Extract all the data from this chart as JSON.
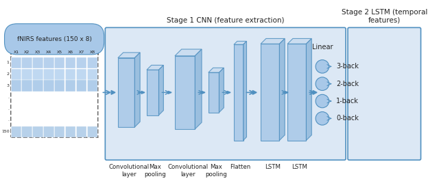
{
  "title": "Stage 1 CNN (feature extraction)",
  "title2": "Stage 2 LSTM (temporal\nfeatures)",
  "input_label": "fNIRS features (150 x 8)",
  "col_labels": [
    "X1",
    "X2",
    "X3",
    "X4",
    "X5",
    "X6",
    "X7",
    "X8"
  ],
  "row_labels": [
    "1",
    "2",
    "3",
    ".",
    ".",
    ".",
    "150"
  ],
  "layer_labels": [
    "Convolutional\nlayer",
    "Max\npooling",
    "Convolutional\nlayer",
    "Max\npooling",
    "Flatten",
    "LSTM",
    "LSTM"
  ],
  "output_labels": [
    "0-back",
    "1-back",
    "2-back",
    "3-back"
  ],
  "output_node_label": "Linear",
  "bg_color": "#e8f0f8",
  "box_face": "#a8c8e8",
  "box_edge": "#5090c0",
  "box_face2": "#b8d0e8",
  "dark_blue": "#4a7aaa",
  "stage1_bg": "#dce8f5",
  "stage2_bg": "#dce8f5",
  "arrow_color": "#5090c0",
  "text_color": "#222222",
  "label_color": "#333333"
}
